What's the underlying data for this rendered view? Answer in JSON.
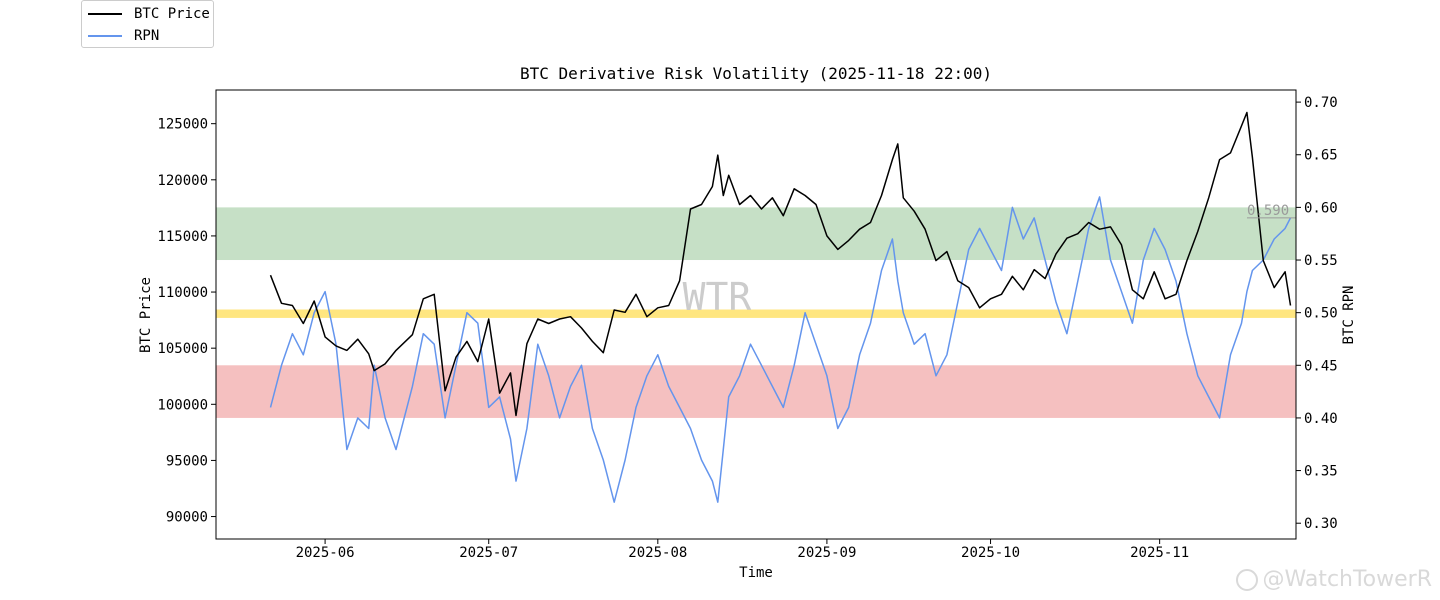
{
  "chart_data": {
    "type": "line",
    "title": "BTC Derivative Risk Volatility (2025-11-18 22:00)",
    "xlabel": "Time",
    "ylabel_left": "BTC Price",
    "ylabel_right": "BTC RPN",
    "x_ticks": [
      "2025-06",
      "2025-07",
      "2025-08",
      "2025-09",
      "2025-10",
      "2025-11"
    ],
    "y_left_ticks": [
      90000,
      95000,
      100000,
      105000,
      110000,
      115000,
      120000,
      125000
    ],
    "y_left_tick_labels": [
      "90000",
      "95000",
      "100000",
      "105000",
      "110000",
      "115000",
      "120000",
      "125000"
    ],
    "y_right_ticks": [
      0.3,
      0.35,
      0.4,
      0.45,
      0.5,
      0.55,
      0.6,
      0.65,
      0.7
    ],
    "y_right_tick_labels": [
      "0.30",
      "0.35",
      "0.40",
      "0.45",
      "0.50",
      "0.55",
      "0.60",
      "0.65",
      "0.70"
    ],
    "x_range": [
      "2025-05-12",
      "2025-11-26"
    ],
    "y_left_range": [
      88000,
      128000
    ],
    "y_right_range": [
      0.285,
      0.7115
    ],
    "bands": [
      {
        "name": "high-risk-band",
        "from": 0.55,
        "to": 0.6,
        "color": "#c6e0c6"
      },
      {
        "name": "mid-line-band",
        "from": 0.495,
        "to": 0.503,
        "color": "#ffe680"
      },
      {
        "name": "low-risk-band",
        "from": 0.4,
        "to": 0.45,
        "color": "#f5c0c0"
      }
    ],
    "last_value_label": "0.590",
    "last_value": 0.59,
    "center_watermark": "WTR",
    "series": [
      {
        "name": "BTC Price",
        "axis": "left",
        "color": "#000000",
        "points": [
          [
            "2025-05-22",
            111500
          ],
          [
            "2025-05-24",
            109000
          ],
          [
            "2025-05-26",
            108800
          ],
          [
            "2025-05-28",
            107200
          ],
          [
            "2025-05-30",
            109200
          ],
          [
            "2025-06-01",
            106000
          ],
          [
            "2025-06-03",
            105200
          ],
          [
            "2025-06-05",
            104800
          ],
          [
            "2025-06-07",
            105800
          ],
          [
            "2025-06-09",
            104500
          ],
          [
            "2025-06-10",
            103000
          ],
          [
            "2025-06-12",
            103600
          ],
          [
            "2025-06-14",
            104800
          ],
          [
            "2025-06-17",
            106200
          ],
          [
            "2025-06-19",
            109400
          ],
          [
            "2025-06-21",
            109800
          ],
          [
            "2025-06-23",
            101200
          ],
          [
            "2025-06-25",
            104200
          ],
          [
            "2025-06-27",
            105600
          ],
          [
            "2025-06-29",
            103800
          ],
          [
            "2025-07-01",
            107600
          ],
          [
            "2025-07-03",
            101000
          ],
          [
            "2025-07-05",
            102800
          ],
          [
            "2025-07-06",
            99000
          ],
          [
            "2025-07-08",
            105400
          ],
          [
            "2025-07-10",
            107600
          ],
          [
            "2025-07-12",
            107200
          ],
          [
            "2025-07-14",
            107600
          ],
          [
            "2025-07-16",
            107800
          ],
          [
            "2025-07-18",
            106800
          ],
          [
            "2025-07-20",
            105600
          ],
          [
            "2025-07-22",
            104600
          ],
          [
            "2025-07-24",
            108400
          ],
          [
            "2025-07-26",
            108200
          ],
          [
            "2025-07-28",
            109800
          ],
          [
            "2025-07-30",
            107800
          ],
          [
            "2025-08-01",
            108600
          ],
          [
            "2025-08-03",
            108800
          ],
          [
            "2025-08-05",
            111000
          ],
          [
            "2025-08-07",
            117400
          ],
          [
            "2025-08-09",
            117800
          ],
          [
            "2025-08-11",
            119400
          ],
          [
            "2025-08-12",
            122200
          ],
          [
            "2025-08-13",
            118600
          ],
          [
            "2025-08-14",
            120400
          ],
          [
            "2025-08-16",
            117800
          ],
          [
            "2025-08-18",
            118600
          ],
          [
            "2025-08-20",
            117400
          ],
          [
            "2025-08-22",
            118400
          ],
          [
            "2025-08-24",
            116800
          ],
          [
            "2025-08-26",
            119200
          ],
          [
            "2025-08-28",
            118600
          ],
          [
            "2025-08-30",
            117800
          ],
          [
            "2025-09-01",
            115000
          ],
          [
            "2025-09-03",
            113800
          ],
          [
            "2025-09-05",
            114600
          ],
          [
            "2025-09-07",
            115600
          ],
          [
            "2025-09-09",
            116200
          ],
          [
            "2025-09-11",
            118600
          ],
          [
            "2025-09-13",
            121800
          ],
          [
            "2025-09-14",
            123200
          ],
          [
            "2025-09-15",
            118400
          ],
          [
            "2025-09-17",
            117200
          ],
          [
            "2025-09-19",
            115600
          ],
          [
            "2025-09-21",
            112800
          ],
          [
            "2025-09-23",
            113600
          ],
          [
            "2025-09-25",
            111000
          ],
          [
            "2025-09-27",
            110400
          ],
          [
            "2025-09-29",
            108600
          ],
          [
            "2025-10-01",
            109400
          ],
          [
            "2025-10-03",
            109800
          ],
          [
            "2025-10-05",
            111400
          ],
          [
            "2025-10-07",
            110200
          ],
          [
            "2025-10-09",
            112000
          ],
          [
            "2025-10-11",
            111200
          ],
          [
            "2025-10-13",
            113400
          ],
          [
            "2025-10-15",
            114800
          ],
          [
            "2025-10-17",
            115200
          ],
          [
            "2025-10-19",
            116200
          ],
          [
            "2025-10-21",
            115600
          ],
          [
            "2025-10-23",
            115800
          ],
          [
            "2025-10-25",
            114200
          ],
          [
            "2025-10-27",
            110200
          ],
          [
            "2025-10-29",
            109400
          ],
          [
            "2025-10-31",
            111800
          ],
          [
            "2025-11-02",
            109400
          ],
          [
            "2025-11-04",
            109800
          ],
          [
            "2025-11-06",
            112800
          ],
          [
            "2025-11-08",
            115400
          ],
          [
            "2025-11-10",
            118400
          ],
          [
            "2025-11-12",
            121800
          ],
          [
            "2025-11-14",
            122400
          ],
          [
            "2025-11-16",
            124800
          ],
          [
            "2025-11-17",
            126000
          ],
          [
            "2025-11-18",
            122000
          ],
          [
            "2025-11-20",
            112800
          ],
          [
            "2025-11-22",
            110400
          ],
          [
            "2025-11-24",
            111800
          ],
          [
            "2025-11-25",
            108800
          ]
        ]
      },
      {
        "name": "RPN",
        "axis": "right",
        "color": "#6495ed",
        "points": [
          [
            "2025-05-22",
            0.41
          ],
          [
            "2025-05-24",
            0.45
          ],
          [
            "2025-05-26",
            0.48
          ],
          [
            "2025-05-28",
            0.46
          ],
          [
            "2025-05-30",
            0.5
          ],
          [
            "2025-06-01",
            0.52
          ],
          [
            "2025-06-03",
            0.47
          ],
          [
            "2025-06-05",
            0.37
          ],
          [
            "2025-06-07",
            0.4
          ],
          [
            "2025-06-09",
            0.39
          ],
          [
            "2025-06-10",
            0.45
          ],
          [
            "2025-06-12",
            0.4
          ],
          [
            "2025-06-14",
            0.37
          ],
          [
            "2025-06-17",
            0.43
          ],
          [
            "2025-06-19",
            0.48
          ],
          [
            "2025-06-21",
            0.47
          ],
          [
            "2025-06-23",
            0.4
          ],
          [
            "2025-06-25",
            0.45
          ],
          [
            "2025-06-27",
            0.5
          ],
          [
            "2025-06-29",
            0.49
          ],
          [
            "2025-07-01",
            0.41
          ],
          [
            "2025-07-03",
            0.42
          ],
          [
            "2025-07-05",
            0.38
          ],
          [
            "2025-07-06",
            0.34
          ],
          [
            "2025-07-08",
            0.39
          ],
          [
            "2025-07-10",
            0.47
          ],
          [
            "2025-07-12",
            0.44
          ],
          [
            "2025-07-14",
            0.4
          ],
          [
            "2025-07-16",
            0.43
          ],
          [
            "2025-07-18",
            0.45
          ],
          [
            "2025-07-20",
            0.39
          ],
          [
            "2025-07-22",
            0.36
          ],
          [
            "2025-07-24",
            0.32
          ],
          [
            "2025-07-26",
            0.36
          ],
          [
            "2025-07-28",
            0.41
          ],
          [
            "2025-07-30",
            0.44
          ],
          [
            "2025-08-01",
            0.46
          ],
          [
            "2025-08-03",
            0.43
          ],
          [
            "2025-08-05",
            0.41
          ],
          [
            "2025-08-07",
            0.39
          ],
          [
            "2025-08-09",
            0.36
          ],
          [
            "2025-08-11",
            0.34
          ],
          [
            "2025-08-12",
            0.32
          ],
          [
            "2025-08-13",
            0.37
          ],
          [
            "2025-08-14",
            0.42
          ],
          [
            "2025-08-16",
            0.44
          ],
          [
            "2025-08-18",
            0.47
          ],
          [
            "2025-08-20",
            0.45
          ],
          [
            "2025-08-22",
            0.43
          ],
          [
            "2025-08-24",
            0.41
          ],
          [
            "2025-08-26",
            0.45
          ],
          [
            "2025-08-28",
            0.5
          ],
          [
            "2025-08-30",
            0.47
          ],
          [
            "2025-09-01",
            0.44
          ],
          [
            "2025-09-03",
            0.39
          ],
          [
            "2025-09-05",
            0.41
          ],
          [
            "2025-09-07",
            0.46
          ],
          [
            "2025-09-09",
            0.49
          ],
          [
            "2025-09-11",
            0.54
          ],
          [
            "2025-09-13",
            0.57
          ],
          [
            "2025-09-14",
            0.53
          ],
          [
            "2025-09-15",
            0.5
          ],
          [
            "2025-09-17",
            0.47
          ],
          [
            "2025-09-19",
            0.48
          ],
          [
            "2025-09-21",
            0.44
          ],
          [
            "2025-09-23",
            0.46
          ],
          [
            "2025-09-25",
            0.51
          ],
          [
            "2025-09-27",
            0.56
          ],
          [
            "2025-09-29",
            0.58
          ],
          [
            "2025-10-01",
            0.56
          ],
          [
            "2025-10-03",
            0.54
          ],
          [
            "2025-10-05",
            0.6
          ],
          [
            "2025-10-07",
            0.57
          ],
          [
            "2025-10-09",
            0.59
          ],
          [
            "2025-10-11",
            0.55
          ],
          [
            "2025-10-13",
            0.51
          ],
          [
            "2025-10-15",
            0.48
          ],
          [
            "2025-10-17",
            0.53
          ],
          [
            "2025-10-19",
            0.58
          ],
          [
            "2025-10-21",
            0.61
          ],
          [
            "2025-10-23",
            0.55
          ],
          [
            "2025-10-25",
            0.52
          ],
          [
            "2025-10-27",
            0.49
          ],
          [
            "2025-10-29",
            0.55
          ],
          [
            "2025-10-31",
            0.58
          ],
          [
            "2025-11-02",
            0.56
          ],
          [
            "2025-11-04",
            0.53
          ],
          [
            "2025-11-06",
            0.48
          ],
          [
            "2025-11-08",
            0.44
          ],
          [
            "2025-11-10",
            0.42
          ],
          [
            "2025-11-12",
            0.4
          ],
          [
            "2025-11-14",
            0.46
          ],
          [
            "2025-11-16",
            0.49
          ],
          [
            "2025-11-17",
            0.52
          ],
          [
            "2025-11-18",
            0.54
          ],
          [
            "2025-11-20",
            0.55
          ],
          [
            "2025-11-22",
            0.57
          ],
          [
            "2025-11-24",
            0.58
          ],
          [
            "2025-11-25",
            0.59
          ]
        ]
      }
    ]
  },
  "legend": {
    "entries": [
      {
        "label": "BTC Price",
        "color": "#000000"
      },
      {
        "label": "RPN",
        "color": "#6495ed"
      }
    ]
  },
  "watermark": {
    "text": "@WatchTowerR"
  }
}
